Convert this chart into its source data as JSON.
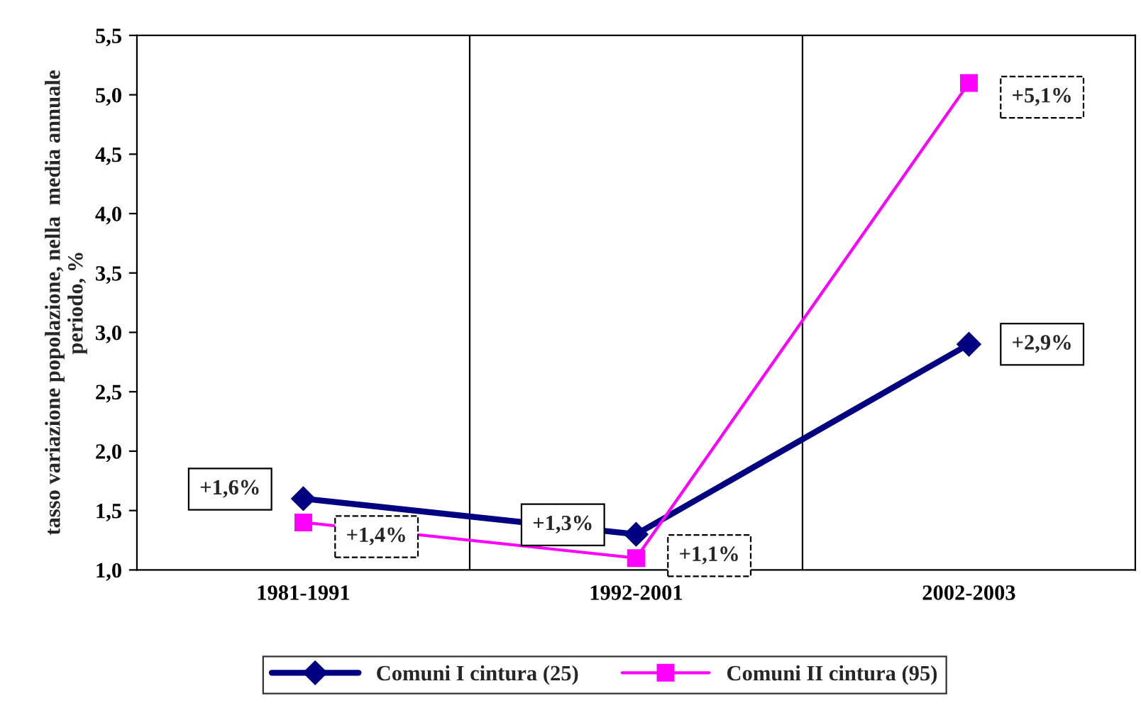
{
  "chart_data": {
    "type": "line",
    "ylabel": "tasso variazione popolazione, nella  media annuale\nperiodo, %",
    "categories": [
      "1981-1991",
      "1992-2001",
      "2002-2003"
    ],
    "series": [
      {
        "name": "Comuni I cintura (25)",
        "color": "#000080",
        "marker": "diamond",
        "values": [
          1.6,
          1.3,
          2.9
        ],
        "value_labels": [
          "+1,6%",
          "+1,3%",
          "+2,9%"
        ]
      },
      {
        "name": "Comuni II cintura (95)",
        "color": "#ff00ff",
        "marker": "square",
        "values": [
          1.4,
          1.1,
          5.1
        ],
        "value_labels": [
          "+1,4%",
          "+1,1%",
          "+5,1%"
        ]
      }
    ],
    "ylim": [
      1.0,
      5.5
    ],
    "yticks": [
      {
        "value": 1.0,
        "label": "1,0"
      },
      {
        "value": 1.5,
        "label": "1,5"
      },
      {
        "value": 2.0,
        "label": "2,0"
      },
      {
        "value": 2.5,
        "label": "2,5"
      },
      {
        "value": 3.0,
        "label": "3,0"
      },
      {
        "value": 3.5,
        "label": "3,5"
      },
      {
        "value": 4.0,
        "label": "4,0"
      },
      {
        "value": 4.5,
        "label": "4,5"
      },
      {
        "value": 5.0,
        "label": "5,0"
      },
      {
        "value": 5.5,
        "label": "5,5"
      }
    ],
    "grid": "x",
    "legend": "bottom"
  }
}
